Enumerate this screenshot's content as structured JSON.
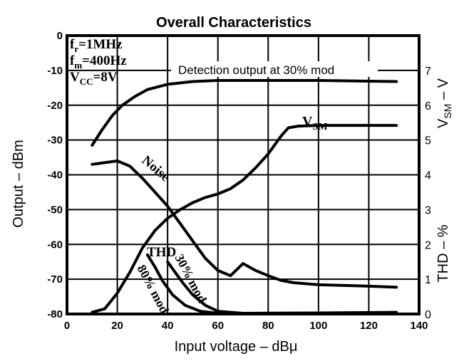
{
  "chart_data": {
    "type": "line",
    "title": "Overall Characteristics",
    "xlabel": "Input voltage – dBμ",
    "ylabel_left": "Output – dBm",
    "ylabel_right_top": "V",
    "ylabel_right_top_sub": "SM",
    "ylabel_right_top_suffix": " – V",
    "ylabel_right_bottom": "THD – %",
    "xlim": [
      0,
      140
    ],
    "ylim_left": [
      -80,
      0
    ],
    "ylim_right": [
      0,
      8
    ],
    "xticks": [
      "0",
      "20",
      "40",
      "60",
      "80",
      "100",
      "120",
      "140"
    ],
    "yticks_left": [
      "0",
      "-10",
      "-20",
      "-30",
      "-40",
      "-50",
      "-60",
      "-70",
      "-80"
    ],
    "yticks_right": [
      "0",
      "1",
      "2",
      "3",
      "4",
      "5",
      "6",
      "7"
    ],
    "grid": true,
    "conditions": [
      {
        "sym": "f",
        "sub": "r",
        "val": "=1MHz"
      },
      {
        "sym": "f",
        "sub": "m",
        "val": "=400Hz"
      },
      {
        "sym": "V",
        "sub": "CC",
        "val": "=8V"
      }
    ],
    "series": [
      {
        "name": "Detection output at 30% mod",
        "axis": "left",
        "points": [
          [
            10,
            -31.5
          ],
          [
            14,
            -27
          ],
          [
            18,
            -23
          ],
          [
            22,
            -20
          ],
          [
            27,
            -17.5
          ],
          [
            32,
            -15.5
          ],
          [
            40,
            -14
          ],
          [
            50,
            -13.2
          ],
          [
            60,
            -12.9
          ],
          [
            80,
            -12.9
          ],
          [
            100,
            -12.9
          ],
          [
            120,
            -13.1
          ],
          [
            131,
            -13.2
          ]
        ]
      },
      {
        "name": "VSM",
        "label": "V",
        "label_sub": "SM",
        "axis": "right",
        "points": [
          [
            10,
            0.05
          ],
          [
            15,
            0.15
          ],
          [
            20,
            0.6
          ],
          [
            25,
            1.2
          ],
          [
            30,
            1.9
          ],
          [
            35,
            2.4
          ],
          [
            40,
            2.75
          ],
          [
            45,
            3.0
          ],
          [
            50,
            3.2
          ],
          [
            55,
            3.35
          ],
          [
            60,
            3.45
          ],
          [
            65,
            3.6
          ],
          [
            70,
            3.85
          ],
          [
            75,
            4.2
          ],
          [
            80,
            4.6
          ],
          [
            85,
            5.1
          ],
          [
            88,
            5.35
          ],
          [
            92,
            5.4
          ],
          [
            100,
            5.42
          ],
          [
            131,
            5.42
          ]
        ]
      },
      {
        "name": "Noise",
        "axis": "left",
        "points": [
          [
            10,
            -37
          ],
          [
            15,
            -36.5
          ],
          [
            20,
            -36
          ],
          [
            25,
            -37.5
          ],
          [
            30,
            -41
          ],
          [
            35,
            -45
          ],
          [
            40,
            -49
          ],
          [
            45,
            -54
          ],
          [
            50,
            -59
          ],
          [
            55,
            -64
          ],
          [
            60,
            -67.5
          ],
          [
            65,
            -69
          ],
          [
            70,
            -65.5
          ],
          [
            75,
            -67.5
          ],
          [
            80,
            -69
          ],
          [
            85,
            -70.3
          ],
          [
            90,
            -71
          ],
          [
            100,
            -71.6
          ],
          [
            110,
            -71.8
          ],
          [
            120,
            -72
          ],
          [
            131,
            -72.3
          ]
        ]
      },
      {
        "name": "THD 30% mod",
        "label": "30% mod",
        "axis": "right",
        "points": [
          [
            40,
            1.5
          ],
          [
            43,
            1.2
          ],
          [
            46,
            0.9
          ],
          [
            50,
            0.55
          ],
          [
            55,
            0.25
          ],
          [
            60,
            0.08
          ],
          [
            70,
            0.02
          ],
          [
            100,
            0.03
          ],
          [
            131,
            0.05
          ]
        ]
      },
      {
        "name": "THD 80% mod",
        "label": "80% mod",
        "axis": "right",
        "points": [
          [
            32,
            1.7
          ],
          [
            35,
            1.35
          ],
          [
            38,
            0.95
          ],
          [
            42,
            0.55
          ],
          [
            47,
            0.25
          ],
          [
            53,
            0.08
          ],
          [
            60,
            0.02
          ]
        ]
      }
    ],
    "annotations": {
      "thd_label": "THD",
      "noise_label": "Noise",
      "thd30_label": "30% mod",
      "thd80_label": "80% mod"
    }
  }
}
